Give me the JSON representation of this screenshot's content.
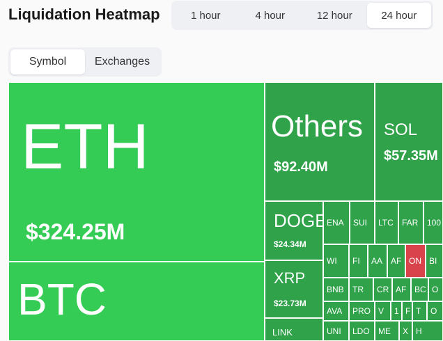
{
  "header": {
    "title": "Liquidation Heatmap",
    "timeframes": [
      "1 hour",
      "4 hour",
      "12 hour",
      "24 hour"
    ],
    "selected_timeframe": 3
  },
  "tabs": {
    "items": [
      "Symbol",
      "Exchanges"
    ],
    "selected": 0
  },
  "heatmap": {
    "tiles": [
      {
        "label": "ETH",
        "value_label": "$324.25M"
      },
      {
        "label": "BTC"
      },
      {
        "label": "Others",
        "value_label": "$92.40M"
      },
      {
        "label": "SOL",
        "value_label": "$57.35M"
      },
      {
        "label": "DOGE",
        "value_label": "$24.34M"
      },
      {
        "label": "XRP",
        "value_label": "$23.73M"
      },
      {
        "label": "LINK"
      },
      {
        "label": "ENA"
      },
      {
        "label": "SUI"
      },
      {
        "label": "LTC"
      },
      {
        "label": "FAR"
      },
      {
        "label": "100"
      },
      {
        "label": "WI"
      },
      {
        "label": "FI"
      },
      {
        "label": "AA"
      },
      {
        "label": "AF"
      },
      {
        "label": "ON"
      },
      {
        "label": "BI"
      },
      {
        "label": "BNB"
      },
      {
        "label": "TR"
      },
      {
        "label": "CR"
      },
      {
        "label": "AF"
      },
      {
        "label": "BC"
      },
      {
        "label": "O"
      },
      {
        "label": "AVA"
      },
      {
        "label": "PRO"
      },
      {
        "label": "V"
      },
      {
        "label": "1"
      },
      {
        "label": "F"
      },
      {
        "label": "T"
      },
      {
        "label": "O"
      },
      {
        "label": "UNI"
      },
      {
        "label": "LDO"
      },
      {
        "label": "ME"
      },
      {
        "label": "X"
      },
      {
        "label": "H"
      }
    ]
  }
}
